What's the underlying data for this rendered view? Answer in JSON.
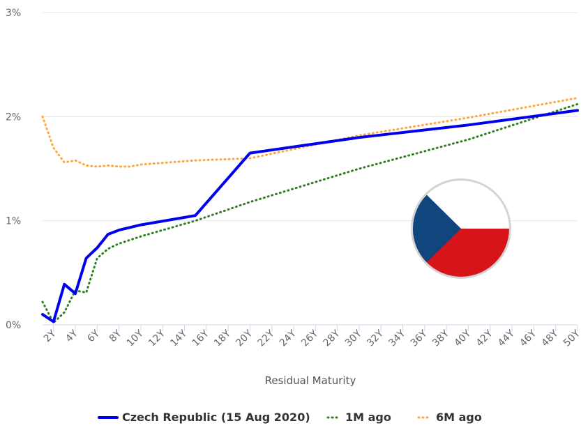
{
  "chart_data": {
    "type": "line",
    "xlabel": "Residual Maturity",
    "ylabel": "",
    "x": [
      2,
      4,
      6,
      8,
      10,
      12,
      14,
      16,
      18,
      20,
      22,
      24,
      26,
      28,
      30,
      32,
      34,
      36,
      38,
      40,
      42,
      44,
      46,
      48,
      50
    ],
    "x_tick_labels": [
      "2Y",
      "4Y",
      "6Y",
      "8Y",
      "10Y",
      "12Y",
      "14Y",
      "16Y",
      "18Y",
      "20Y",
      "22Y",
      "24Y",
      "26Y",
      "28Y",
      "30Y",
      "32Y",
      "34Y",
      "36Y",
      "38Y",
      "40Y",
      "42Y",
      "44Y",
      "46Y",
      "48Y",
      "50Y"
    ],
    "y_tick_labels": [
      "0%",
      "1%",
      "2%",
      "3%"
    ],
    "ylim": [
      0,
      3
    ],
    "xlim": [
      1,
      50
    ],
    "grid": true,
    "legend_position": "bottom",
    "series": [
      {
        "name": "Czech Republic (15 Aug 2020)",
        "color": "#0000ee",
        "style": "solid",
        "points": [
          [
            1,
            0.1
          ],
          [
            2,
            0.03
          ],
          [
            3,
            0.39
          ],
          [
            4,
            0.3
          ],
          [
            5,
            0.64
          ],
          [
            6,
            0.74
          ],
          [
            7,
            0.87
          ],
          [
            8,
            0.91
          ],
          [
            10,
            0.96
          ],
          [
            15,
            1.05
          ],
          [
            20,
            1.65
          ],
          [
            30,
            1.8
          ],
          [
            40,
            1.92
          ],
          [
            50,
            2.06
          ]
        ]
      },
      {
        "name": "1M ago",
        "color": "#2e7d1f",
        "style": "dotted",
        "points": [
          [
            1,
            0.22
          ],
          [
            2,
            0.02
          ],
          [
            3,
            0.12
          ],
          [
            4,
            0.33
          ],
          [
            5,
            0.31
          ],
          [
            6,
            0.64
          ],
          [
            7,
            0.73
          ],
          [
            8,
            0.78
          ],
          [
            10,
            0.85
          ],
          [
            15,
            1.0
          ],
          [
            20,
            1.18
          ],
          [
            30,
            1.5
          ],
          [
            40,
            1.78
          ],
          [
            50,
            2.12
          ]
        ]
      },
      {
        "name": "6M ago",
        "color": "#ffa53a",
        "style": "dotted",
        "points": [
          [
            1,
            2.0
          ],
          [
            2,
            1.7
          ],
          [
            3,
            1.56
          ],
          [
            4,
            1.58
          ],
          [
            5,
            1.53
          ],
          [
            6,
            1.52
          ],
          [
            7,
            1.53
          ],
          [
            8,
            1.52
          ],
          [
            9,
            1.52
          ],
          [
            10,
            1.54
          ],
          [
            15,
            1.58
          ],
          [
            20,
            1.6
          ],
          [
            30,
            1.82
          ],
          [
            40,
            1.99
          ],
          [
            50,
            2.18
          ]
        ]
      }
    ]
  },
  "flag_icon": "czech-flag-icon",
  "flag_colors": {
    "white": "#ffffff",
    "red": "#d7141a",
    "blue": "#11457e"
  }
}
